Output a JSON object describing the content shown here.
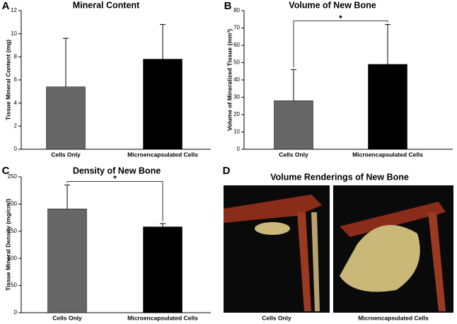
{
  "chart_data": [
    {
      "panel": "A",
      "type": "bar",
      "title": "Mineral Content",
      "ylabel": "Tissue Mineral Content (mg)",
      "categories": [
        "Cells Only",
        "Microencapsulated Cells"
      ],
      "values": [
        5.4,
        7.8
      ],
      "errors": [
        4.2,
        3.0
      ],
      "colors": [
        "#666666",
        "#000000"
      ],
      "ylim": [
        0,
        12
      ],
      "yticks": [
        0,
        2,
        4,
        6,
        8,
        10,
        12
      ]
    },
    {
      "panel": "B",
      "type": "bar",
      "title": "Volume of New Bone",
      "ylabel": "Volume of Mineralized Tissue (mm³)",
      "categories": [
        "Cells Only",
        "Microencapsulated Cells"
      ],
      "values": [
        28,
        49
      ],
      "errors": [
        18,
        23
      ],
      "colors": [
        "#666666",
        "#000000"
      ],
      "ylim": [
        0,
        80
      ],
      "yticks": [
        0,
        10,
        20,
        30,
        40,
        50,
        60,
        70,
        80
      ],
      "annotation": "*"
    },
    {
      "panel": "C",
      "type": "bar",
      "title": "Density of New Bone",
      "ylabel": "Tissue Mineral Density (mg/cm³)",
      "categories": [
        "Cells Only",
        "Microencapsulated Cells"
      ],
      "values": [
        191,
        158
      ],
      "errors": [
        44,
        6
      ],
      "colors": [
        "#666666",
        "#000000"
      ],
      "ylim": [
        0,
        250
      ],
      "yticks": [
        0,
        50,
        100,
        150,
        200,
        250
      ],
      "annotation": "*"
    },
    {
      "panel": "D",
      "type": "image",
      "title": "Volume Renderings of New Bone",
      "categories": [
        "Cells Only",
        "Microencapsulated Cells"
      ]
    }
  ]
}
